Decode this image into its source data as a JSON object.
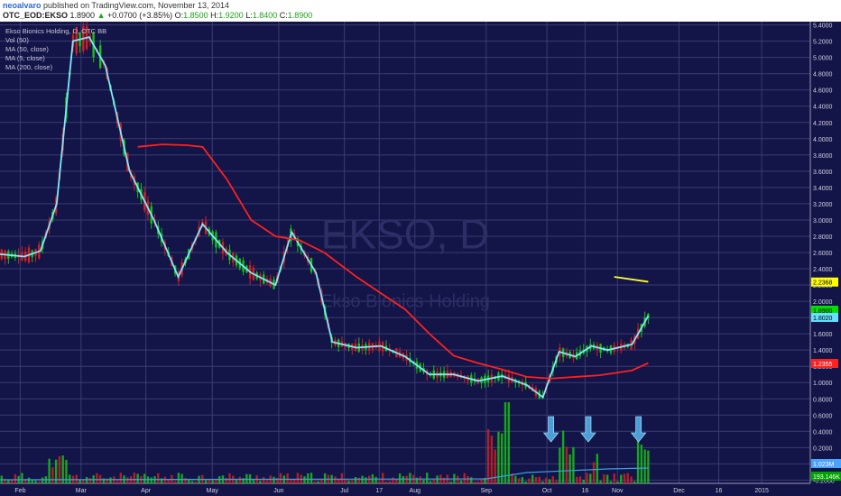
{
  "header": {
    "user": "neoalvaro",
    "published": "published on TradingView.com, November 13, 2014",
    "symbol": "OTC_EOD:EKSO",
    "last": "1.8900",
    "change": "+0.0700 (+3.85%)",
    "o_label": "O:",
    "o_val": "1.8500",
    "h_label": "H:",
    "h_val": "1.9200",
    "l_label": "L:",
    "l_val": "1.8400",
    "c_label": "C:",
    "c_val": "1.8900"
  },
  "legend": [
    "Ekso Bionics Holding, D, OTC BB",
    "Vol (50)",
    "MA (50, close)",
    "MA (5, close)",
    "MA (200, close)"
  ],
  "watermark": {
    "symbol": "EKSO, D",
    "name": "Ekso Bionics Holding"
  },
  "chart_data": {
    "type": "candlestick",
    "x_tick_labels": [
      "Feb",
      "Mar",
      "Apr",
      "May",
      "Jun",
      "Jul",
      "17",
      "Aug",
      "Sep",
      "Oct",
      "16",
      "Nov",
      "Dec",
      "16",
      "2015"
    ],
    "y_tick_labels": [
      "5.4000",
      "5.2000",
      "5.0000",
      "4.8000",
      "4.6000",
      "4.4000",
      "4.2000",
      "4.0000",
      "3.8000",
      "3.6000",
      "3.4000",
      "3.2000",
      "3.0000",
      "2.8000",
      "2.6000",
      "2.4000",
      "2.2000",
      "2.0000",
      "1.8000",
      "1.6000",
      "1.4000",
      "1.2000",
      "1.0000",
      "0.8000",
      "0.6000",
      "0.4000",
      "0.2000",
      "-0.0000",
      "-0.2000"
    ],
    "ylim": [
      -0.24,
      5.44
    ],
    "price_markers": [
      {
        "label": "2.2368",
        "value": 2.2368,
        "color": "#ffff00"
      },
      {
        "label": "1.8900",
        "value": 1.89,
        "color": "#00e000"
      },
      {
        "label": "1.8020",
        "value": 1.802,
        "color": "#66e0ff"
      },
      {
        "label": "1.2355",
        "value": 1.2355,
        "color": "#ff2020"
      }
    ],
    "volume_markers": [
      {
        "label": "1.023M",
        "color": "#4aa3ff"
      },
      {
        "label": "193.146K",
        "color": "#00a000"
      }
    ],
    "series": [
      {
        "name": "MA (5, close)",
        "color": "#7fe8ff",
        "points": [
          [
            0,
            2.58
          ],
          [
            0.03,
            2.55
          ],
          [
            0.05,
            2.62
          ],
          [
            0.07,
            3.2
          ],
          [
            0.09,
            5.2
          ],
          [
            0.11,
            5.25
          ],
          [
            0.13,
            4.9
          ],
          [
            0.16,
            3.6
          ],
          [
            0.19,
            3.0
          ],
          [
            0.22,
            2.3
          ],
          [
            0.25,
            2.95
          ],
          [
            0.28,
            2.6
          ],
          [
            0.31,
            2.35
          ],
          [
            0.34,
            2.2
          ],
          [
            0.36,
            2.85
          ],
          [
            0.39,
            2.35
          ],
          [
            0.41,
            1.5
          ],
          [
            0.44,
            1.43
          ],
          [
            0.47,
            1.45
          ],
          [
            0.5,
            1.32
          ],
          [
            0.53,
            1.1
          ],
          [
            0.56,
            1.1
          ],
          [
            0.59,
            1.02
          ],
          [
            0.62,
            1.08
          ],
          [
            0.65,
            0.97
          ],
          [
            0.67,
            0.82
          ],
          [
            0.69,
            1.38
          ],
          [
            0.71,
            1.32
          ],
          [
            0.73,
            1.45
          ],
          [
            0.75,
            1.4
          ],
          [
            0.78,
            1.47
          ],
          [
            0.8,
            1.82
          ]
        ]
      },
      {
        "name": "MA (50, close)",
        "color": "#ff2020",
        "points": [
          [
            0.17,
            3.9
          ],
          [
            0.2,
            3.93
          ],
          [
            0.23,
            3.92
          ],
          [
            0.25,
            3.9
          ],
          [
            0.28,
            3.5
          ],
          [
            0.31,
            3.0
          ],
          [
            0.34,
            2.8
          ],
          [
            0.37,
            2.75
          ],
          [
            0.4,
            2.6
          ],
          [
            0.44,
            2.3
          ],
          [
            0.47,
            2.1
          ],
          [
            0.5,
            1.9
          ],
          [
            0.53,
            1.6
          ],
          [
            0.56,
            1.33
          ],
          [
            0.59,
            1.24
          ],
          [
            0.62,
            1.16
          ],
          [
            0.65,
            1.07
          ],
          [
            0.68,
            1.05
          ],
          [
            0.71,
            1.07
          ],
          [
            0.74,
            1.09
          ],
          [
            0.78,
            1.15
          ],
          [
            0.8,
            1.24
          ]
        ]
      },
      {
        "name": "MA (200, close)",
        "color": "#ffff33",
        "points": [
          [
            0.758,
            2.3
          ],
          [
            0.8,
            2.24
          ]
        ]
      }
    ]
  },
  "colors": {
    "background": "#131447",
    "grid": "#3a3c73",
    "axis_text": "#d0d0e0",
    "up_candle": "#18c018",
    "down_candle": "#d02020",
    "arrow": "#4a9fd8"
  }
}
